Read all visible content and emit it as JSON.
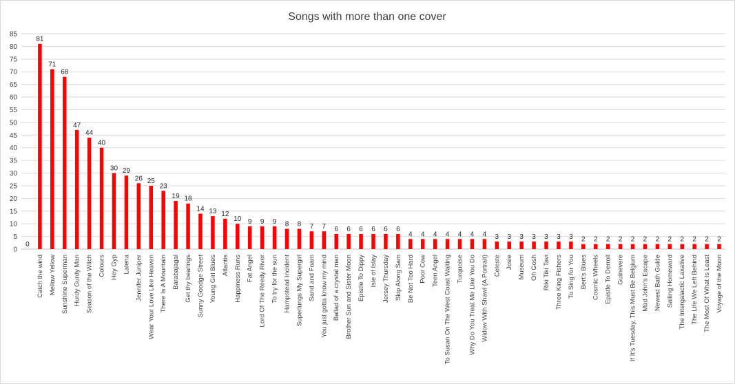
{
  "chart_data": {
    "type": "bar",
    "title": "Songs with more than one cover",
    "xlabel": "",
    "ylabel": "",
    "ylim": [
      0,
      85
    ],
    "yticks": [
      0,
      5,
      10,
      15,
      20,
      25,
      30,
      35,
      40,
      45,
      50,
      55,
      60,
      65,
      70,
      75,
      80,
      85
    ],
    "grid": true,
    "legend": "none",
    "bar_color": "#ff0000",
    "categories": [
      "",
      "Catch the wind",
      "Mellow Yellow",
      "Sunshine Superman",
      "Hurdy Gurdy Man",
      "Season of the Witch",
      "Colours",
      "Hey Gyp",
      "Lalena",
      "Jennifer Juniper",
      "Wear Your Love Like Heaven",
      "There Is A Mountain",
      "Barabajagal",
      "Get thy bearings",
      "Sunny Goodge Street",
      "Young Girl Blues",
      "Atlantis",
      "Happiness Runs",
      "Fat Angel",
      "Lord Of The Reedy River",
      "To try for the sun",
      "Hampstead Incident",
      "Superlungs My Supergirl",
      "Sand and Foam",
      "You just gotta know my mind",
      "Ballad of a crystal man",
      "Brother Sun and Sister Moon",
      "Epistle To Dippy",
      "Isle of Islay",
      "Jersey Thursday",
      "Skip Along Sam",
      "Be Not Too Hard",
      "Poor Cow",
      "Teen Angel",
      "To Susan On The West Coast Waiting",
      "Turquoise",
      "Why Do You Treat Me Like You Do",
      "Widow With Shawl (A Portrait)",
      "Celeste",
      "Josie",
      "Museum",
      "Oh Gosh",
      "Riki Tiki Tavi",
      "Three King Fishers",
      "To Sing for You",
      "Bert's Blues",
      "Cosmic Wheels",
      "Epistle To Derroll",
      "Guinevere",
      "If It's Tuesday, This Must Be Belgium",
      "Mad John's Escape",
      "Newest Bath Guide",
      "Sailing Homeward",
      "The Intergalactic Laxative",
      "The Life We Left Behind",
      "The Most Of What Is Least",
      "Voyage of the Moon"
    ],
    "values": [
      0,
      81,
      71,
      68,
      47,
      44,
      40,
      30,
      29,
      26,
      25,
      23,
      19,
      18,
      14,
      13,
      12,
      10,
      9,
      9,
      9,
      8,
      8,
      7,
      7,
      6,
      6,
      6,
      6,
      6,
      6,
      4,
      4,
      4,
      4,
      4,
      4,
      4,
      3,
      3,
      3,
      3,
      3,
      3,
      3,
      2,
      2,
      2,
      2,
      2,
      2,
      2,
      2,
      2,
      2,
      2,
      2
    ]
  }
}
